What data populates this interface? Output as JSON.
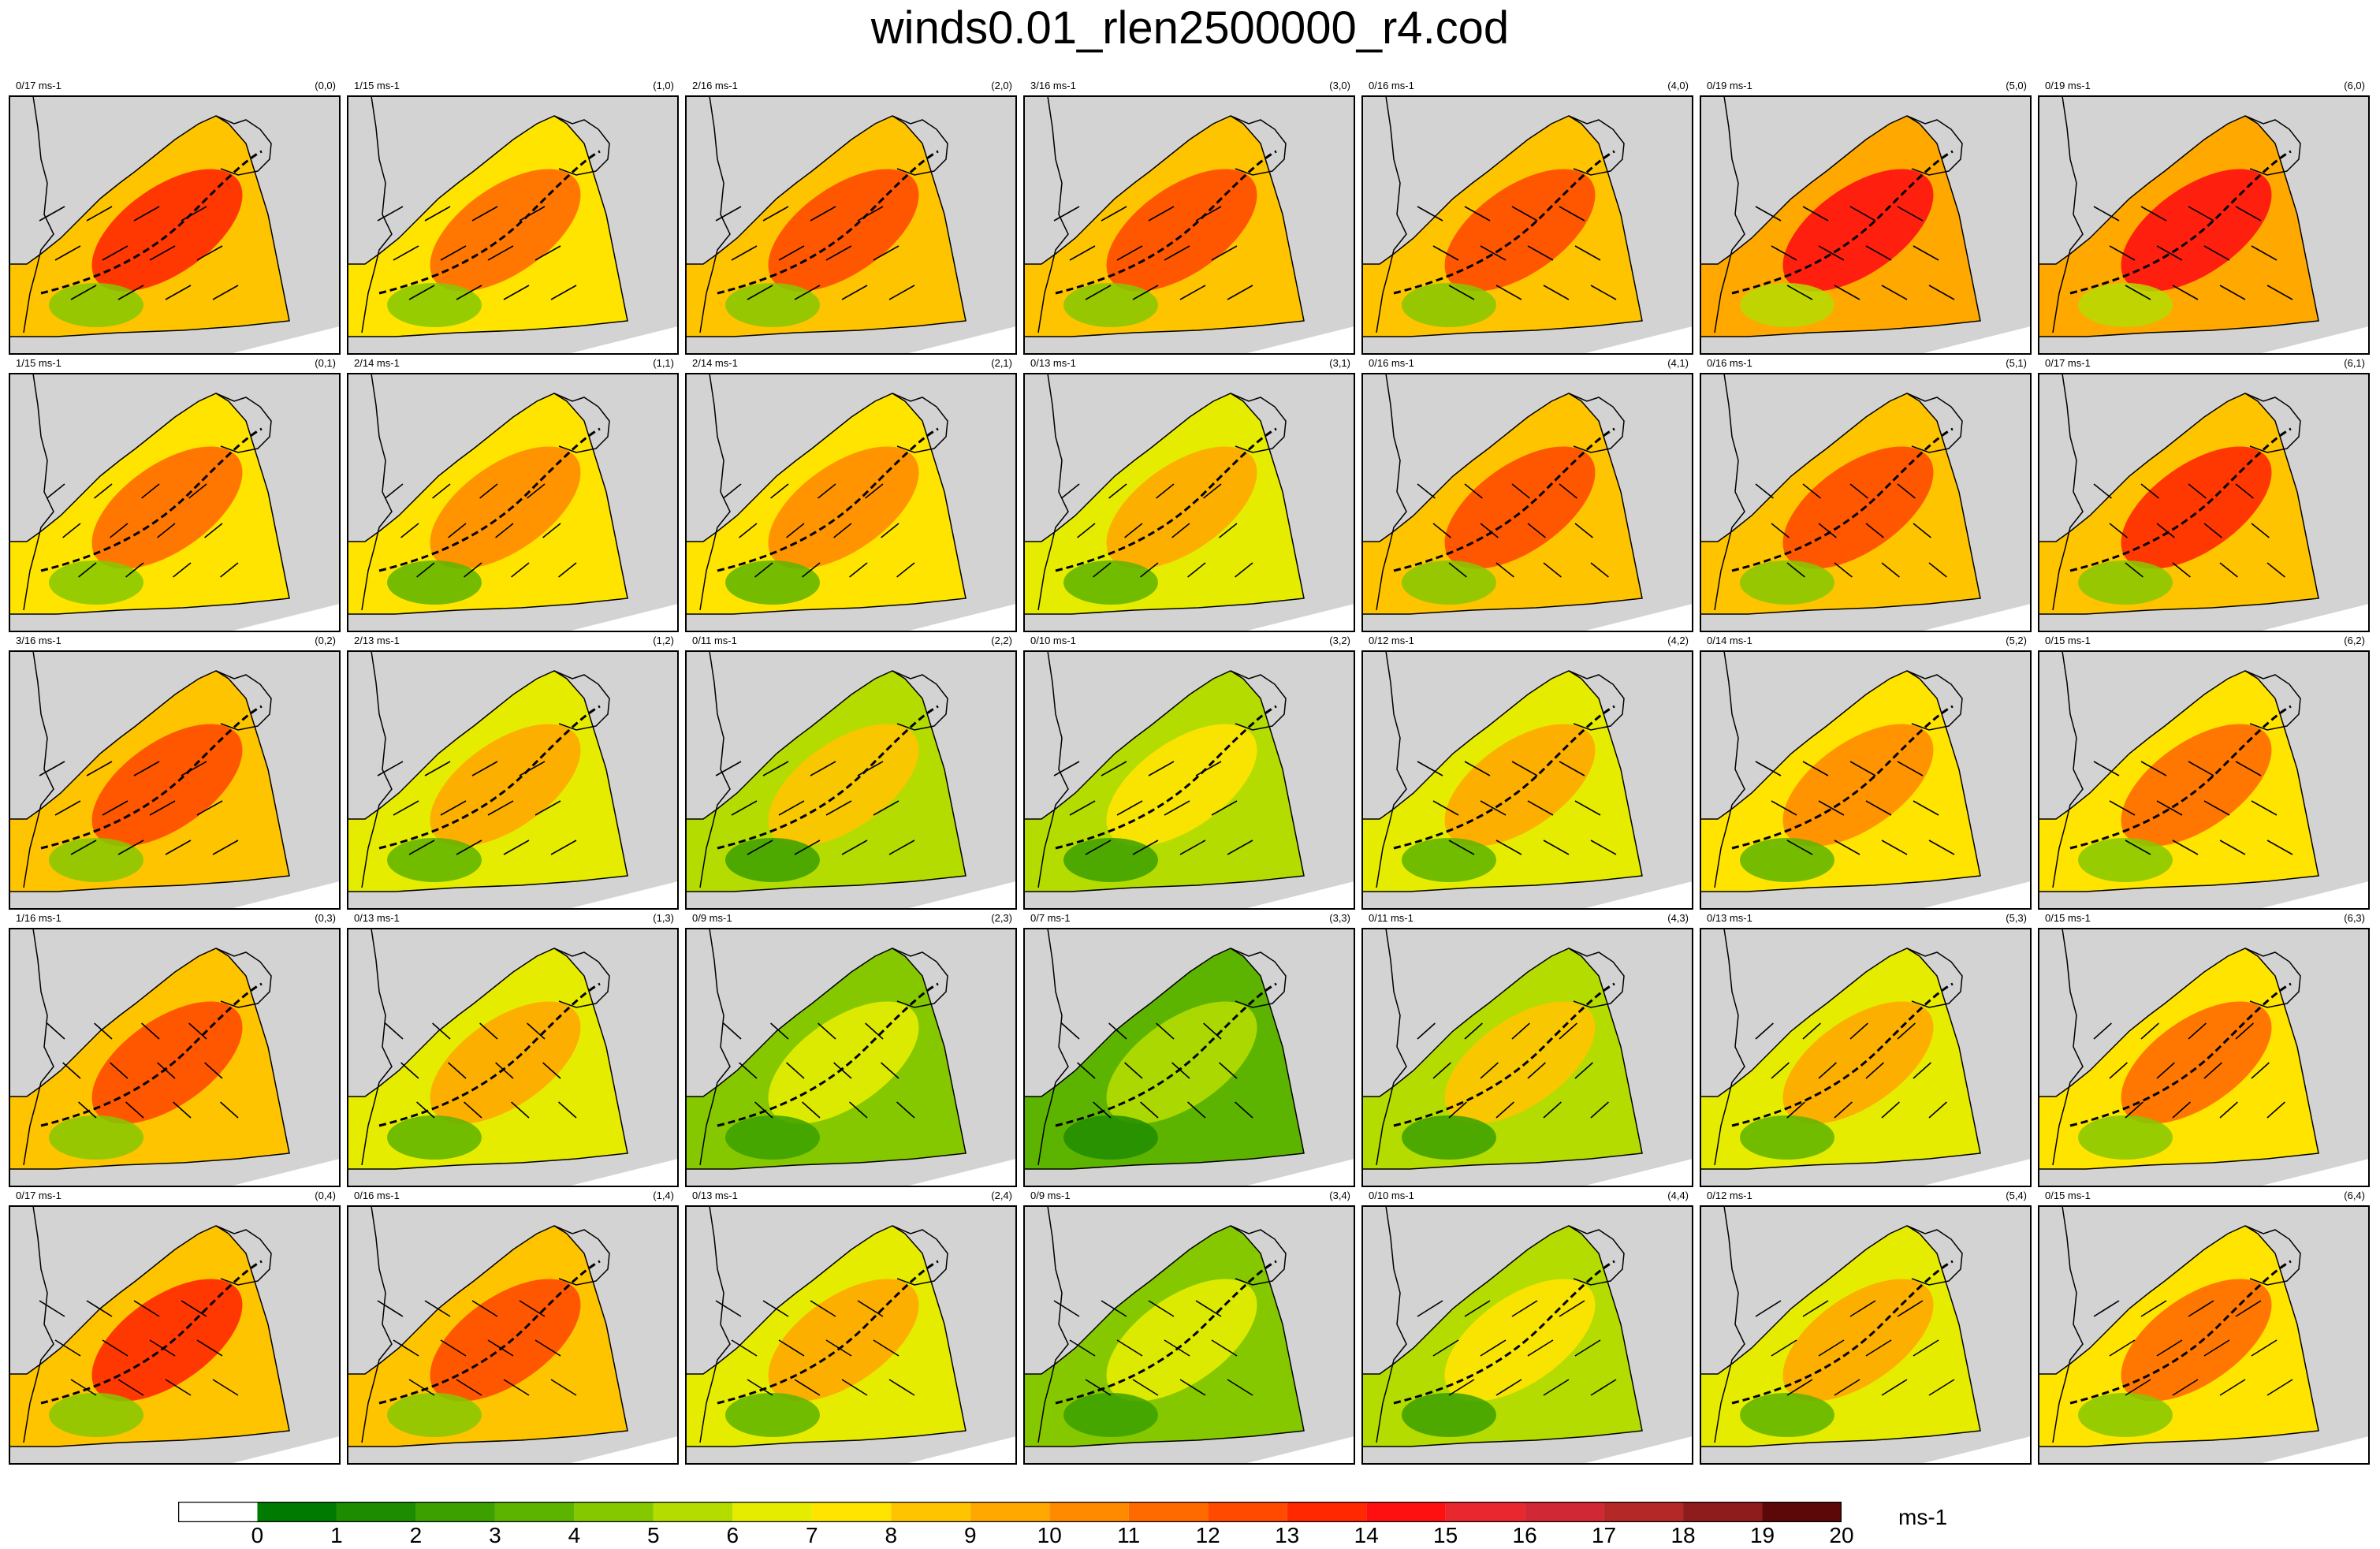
{
  "title": "winds0.01_rlen2500000_r4.cod",
  "colorbar": {
    "unit": "ms-1",
    "ticks": [
      "0",
      "1",
      "2",
      "3",
      "4",
      "5",
      "6",
      "7",
      "8",
      "9",
      "10",
      "11",
      "12",
      "13",
      "14",
      "15",
      "16",
      "17",
      "18",
      "19",
      "20"
    ],
    "colors": [
      "#ffffff",
      "#007a00",
      "#1e8c00",
      "#3ba000",
      "#5db400",
      "#85c800",
      "#b4dc00",
      "#e6ec00",
      "#ffe400",
      "#ffc400",
      "#ffa800",
      "#ff8a00",
      "#ff6a00",
      "#ff4a00",
      "#ff2800",
      "#ff1010",
      "#e8282e",
      "#d02834",
      "#b42828",
      "#8e1c1c",
      "#5c0808"
    ]
  },
  "chart_data": {
    "type": "heatmap",
    "title": "winds0.01_rlen2500000_r4.cod",
    "unit": "ms-1",
    "grid": {
      "columns": 7,
      "rows": 5
    },
    "panels": [
      {
        "index": "(0,0)",
        "range": "0/17 ms-1",
        "col": 0,
        "row": 0
      },
      {
        "index": "(1,0)",
        "range": "1/15 ms-1",
        "col": 1,
        "row": 0
      },
      {
        "index": "(2,0)",
        "range": "2/16 ms-1",
        "col": 2,
        "row": 0
      },
      {
        "index": "(3,0)",
        "range": "3/16 ms-1",
        "col": 3,
        "row": 0
      },
      {
        "index": "(4,0)",
        "range": "0/16 ms-1",
        "col": 4,
        "row": 0
      },
      {
        "index": "(5,0)",
        "range": "0/19 ms-1",
        "col": 5,
        "row": 0
      },
      {
        "index": "(6,0)",
        "range": "0/19 ms-1",
        "col": 6,
        "row": 0
      },
      {
        "index": "(0,1)",
        "range": "1/15 ms-1",
        "col": 0,
        "row": 1
      },
      {
        "index": "(1,1)",
        "range": "2/14 ms-1",
        "col": 1,
        "row": 1
      },
      {
        "index": "(2,1)",
        "range": "2/14 ms-1",
        "col": 2,
        "row": 1
      },
      {
        "index": "(3,1)",
        "range": "0/13 ms-1",
        "col": 3,
        "row": 1
      },
      {
        "index": "(4,1)",
        "range": "0/16 ms-1",
        "col": 4,
        "row": 1
      },
      {
        "index": "(5,1)",
        "range": "0/16 ms-1",
        "col": 5,
        "row": 1
      },
      {
        "index": "(6,1)",
        "range": "0/17 ms-1",
        "col": 6,
        "row": 1
      },
      {
        "index": "(0,2)",
        "range": "3/16 ms-1",
        "col": 0,
        "row": 2
      },
      {
        "index": "(1,2)",
        "range": "2/13 ms-1",
        "col": 1,
        "row": 2
      },
      {
        "index": "(2,2)",
        "range": "0/11 ms-1",
        "col": 2,
        "row": 2
      },
      {
        "index": "(3,2)",
        "range": "0/10 ms-1",
        "col": 3,
        "row": 2
      },
      {
        "index": "(4,2)",
        "range": "0/12 ms-1",
        "col": 4,
        "row": 2
      },
      {
        "index": "(5,2)",
        "range": "0/14 ms-1",
        "col": 5,
        "row": 2
      },
      {
        "index": "(6,2)",
        "range": "0/15 ms-1",
        "col": 6,
        "row": 2
      },
      {
        "index": "(0,3)",
        "range": "1/16 ms-1",
        "col": 0,
        "row": 3
      },
      {
        "index": "(1,3)",
        "range": "0/13 ms-1",
        "col": 1,
        "row": 3
      },
      {
        "index": "(2,3)",
        "range": "0/9 ms-1",
        "col": 2,
        "row": 3
      },
      {
        "index": "(3,3)",
        "range": "0/7 ms-1",
        "col": 3,
        "row": 3
      },
      {
        "index": "(4,3)",
        "range": "0/11 ms-1",
        "col": 4,
        "row": 3
      },
      {
        "index": "(5,3)",
        "range": "0/13 ms-1",
        "col": 5,
        "row": 3
      },
      {
        "index": "(6,3)",
        "range": "0/15 ms-1",
        "col": 6,
        "row": 3
      },
      {
        "index": "(0,4)",
        "range": "0/17 ms-1",
        "col": 0,
        "row": 4
      },
      {
        "index": "(1,4)",
        "range": "0/16 ms-1",
        "col": 1,
        "row": 4
      },
      {
        "index": "(2,4)",
        "range": "0/13 ms-1",
        "col": 2,
        "row": 4
      },
      {
        "index": "(3,4)",
        "range": "0/9 ms-1",
        "col": 3,
        "row": 4
      },
      {
        "index": "(4,4)",
        "range": "0/10 ms-1",
        "col": 4,
        "row": 4
      },
      {
        "index": "(5,4)",
        "range": "0/12 ms-1",
        "col": 5,
        "row": 4
      },
      {
        "index": "(6,4)",
        "range": "0/15 ms-1",
        "col": 6,
        "row": 4
      }
    ]
  }
}
